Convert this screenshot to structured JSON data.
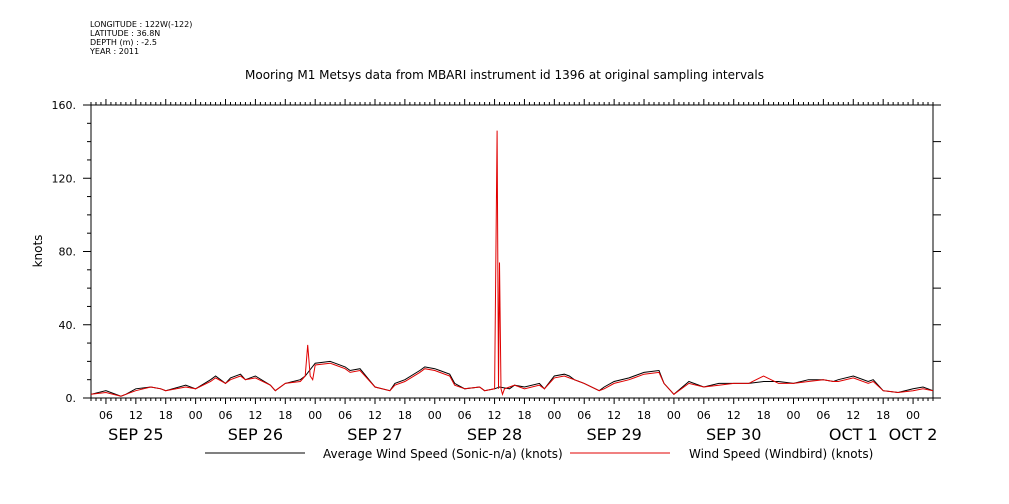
{
  "meta": {
    "longitude": "LONGITUDE : 122W(-122)",
    "latitude": "LATITUDE : 36.8N",
    "depth": "DEPTH (m) : -2.5",
    "year": "YEAR : 2011"
  },
  "chart_data": {
    "type": "line",
    "title": "Mooring M1 Metsys data from MBARI instrument id 1396 at original sampling intervals",
    "ylabel": "knots",
    "xlabel": "",
    "ylim": [
      0,
      160
    ],
    "yticks": [
      0,
      40,
      80,
      120,
      160
    ],
    "ytick_labels": [
      "0.",
      "40.",
      "80.",
      "120.",
      "160."
    ],
    "xlim_hours": [
      3,
      172
    ],
    "x_hour_ticks": [
      6,
      12,
      18,
      24,
      30,
      36,
      42,
      48,
      54,
      60,
      66,
      72,
      78,
      84,
      90,
      96,
      102,
      108,
      114,
      120,
      126,
      132,
      138,
      144,
      150,
      156,
      162,
      168
    ],
    "x_hour_labels": [
      "06",
      "12",
      "18",
      "00",
      "06",
      "12",
      "18",
      "00",
      "06",
      "12",
      "18",
      "00",
      "06",
      "12",
      "18",
      "00",
      "06",
      "12",
      "18",
      "00",
      "06",
      "12",
      "18",
      "00",
      "06",
      "12",
      "18",
      "00"
    ],
    "day_labels": [
      {
        "label": "SEP 25",
        "hour": 12
      },
      {
        "label": "SEP 26",
        "hour": 36
      },
      {
        "label": "SEP 27",
        "hour": 60
      },
      {
        "label": "SEP 28",
        "hour": 84
      },
      {
        "label": "SEP 29",
        "hour": 108
      },
      {
        "label": "SEP 30",
        "hour": 132
      },
      {
        "label": "OCT  1",
        "hour": 156
      },
      {
        "label": "OCT  2",
        "hour": 168
      }
    ],
    "legend_position": "bottom",
    "series": [
      {
        "name": "Average Wind Speed (Sonic-n/a) (knots)",
        "color": "#000000",
        "x": [
          3,
          6,
          9,
          10,
          12,
          15,
          17,
          18,
          22,
          24,
          27,
          28,
          30,
          31,
          33,
          34,
          36,
          39,
          40,
          42,
          45,
          46,
          48,
          51,
          52,
          54,
          55,
          57,
          60,
          63,
          64,
          66,
          69,
          70,
          72,
          73,
          75,
          76,
          78,
          81,
          82,
          84,
          85,
          87,
          88,
          90,
          93,
          94,
          96,
          98,
          99,
          100,
          102,
          105,
          106,
          108,
          111,
          112,
          114,
          117,
          118,
          120,
          123,
          126,
          129,
          132,
          135,
          138,
          141,
          144,
          147,
          150,
          152,
          153,
          156,
          159,
          160,
          162,
          165,
          168,
          170,
          172
        ],
        "y": [
          2,
          4,
          1,
          2,
          5,
          6,
          5,
          4,
          7,
          5,
          10,
          12,
          8,
          11,
          13,
          10,
          12,
          7,
          4,
          8,
          10,
          12,
          19,
          20,
          19,
          17,
          15,
          16,
          6,
          4,
          8,
          10,
          15,
          17,
          16,
          15,
          13,
          8,
          5,
          6,
          4,
          5,
          6,
          5,
          7,
          6,
          8,
          5,
          12,
          13,
          12,
          10,
          8,
          4,
          6,
          9,
          11,
          12,
          14,
          15,
          8,
          2,
          9,
          6,
          8,
          8,
          8,
          9,
          9,
          8,
          10,
          10,
          9,
          10,
          12,
          9,
          10,
          4,
          3,
          5,
          6,
          4
        ]
      },
      {
        "name": "Wind Speed (Windbird) (knots)",
        "color": "#e00000",
        "x": [
          3,
          6,
          9,
          10,
          12,
          15,
          17,
          18,
          22,
          24,
          27,
          28,
          30,
          31,
          33,
          34,
          36,
          39,
          40,
          42,
          45,
          46,
          46.5,
          47,
          47.5,
          48,
          51,
          52,
          54,
          55,
          57,
          60,
          63,
          64,
          66,
          69,
          70,
          72,
          73,
          75,
          76,
          78,
          81,
          82,
          84,
          84.5,
          84.8,
          85,
          85.3,
          85.6,
          86,
          87,
          88,
          90,
          93,
          94,
          96,
          98,
          99,
          100,
          102,
          105,
          106,
          108,
          111,
          112,
          114,
          117,
          118,
          120,
          123,
          126,
          129,
          132,
          135,
          138,
          141,
          144,
          147,
          150,
          152,
          153,
          156,
          159,
          160,
          162,
          165,
          168,
          170,
          172
        ],
        "y": [
          2,
          3,
          1,
          2,
          4,
          6,
          5,
          4,
          6,
          5,
          9,
          11,
          8,
          10,
          12,
          10,
          11,
          7,
          4,
          8,
          9,
          12,
          29,
          12,
          10,
          18,
          19,
          18,
          16,
          14,
          15,
          6,
          4,
          7,
          9,
          14,
          16,
          15,
          14,
          12,
          7,
          5,
          6,
          4,
          5,
          146,
          5,
          74,
          5,
          2,
          5,
          6,
          7,
          5,
          7,
          5,
          11,
          12,
          11,
          10,
          8,
          4,
          5,
          8,
          10,
          11,
          13,
          14,
          8,
          2,
          8,
          6,
          7,
          8,
          8,
          12,
          8,
          8,
          9,
          10,
          9,
          9,
          11,
          8,
          9,
          4,
          3,
          4,
          5,
          4
        ]
      }
    ]
  }
}
